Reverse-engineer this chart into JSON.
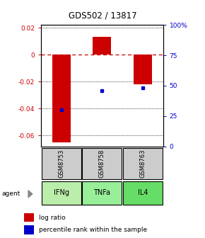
{
  "title": "GDS502 / 13817",
  "samples": [
    "GSM8753",
    "GSM8758",
    "GSM8763"
  ],
  "agents": [
    "IFNg",
    "TNFa",
    "IL4"
  ],
  "x_positions": [
    1,
    2,
    3
  ],
  "log_ratios": [
    -0.065,
    0.013,
    -0.022
  ],
  "percentile_ranks": [
    30,
    46,
    48
  ],
  "ylim_left": [
    -0.068,
    0.022
  ],
  "ylim_right": [
    0,
    100
  ],
  "left_yticks": [
    0.02,
    0.0,
    -0.02,
    -0.04,
    -0.06
  ],
  "right_yticks": [
    100,
    75,
    50,
    25,
    0
  ],
  "left_ytick_labels": [
    "0.02",
    "0",
    "-0.02",
    "-0.04",
    "-0.06"
  ],
  "right_ytick_labels": [
    "100%",
    "75",
    "50",
    "25",
    "0"
  ],
  "bar_color": "#cc0000",
  "dot_color": "#0000cc",
  "zero_line_color": "#cc0000",
  "grid_color": "#000000",
  "sample_bg_color": "#cccccc",
  "agent_colors": [
    "#bbeeaa",
    "#99ee99",
    "#66dd66"
  ],
  "legend_bar_label": "log ratio",
  "legend_dot_label": "percentile rank within the sample",
  "bar_width": 0.45,
  "left_label_color": "#cc0000",
  "right_label_color": "#0000cc"
}
